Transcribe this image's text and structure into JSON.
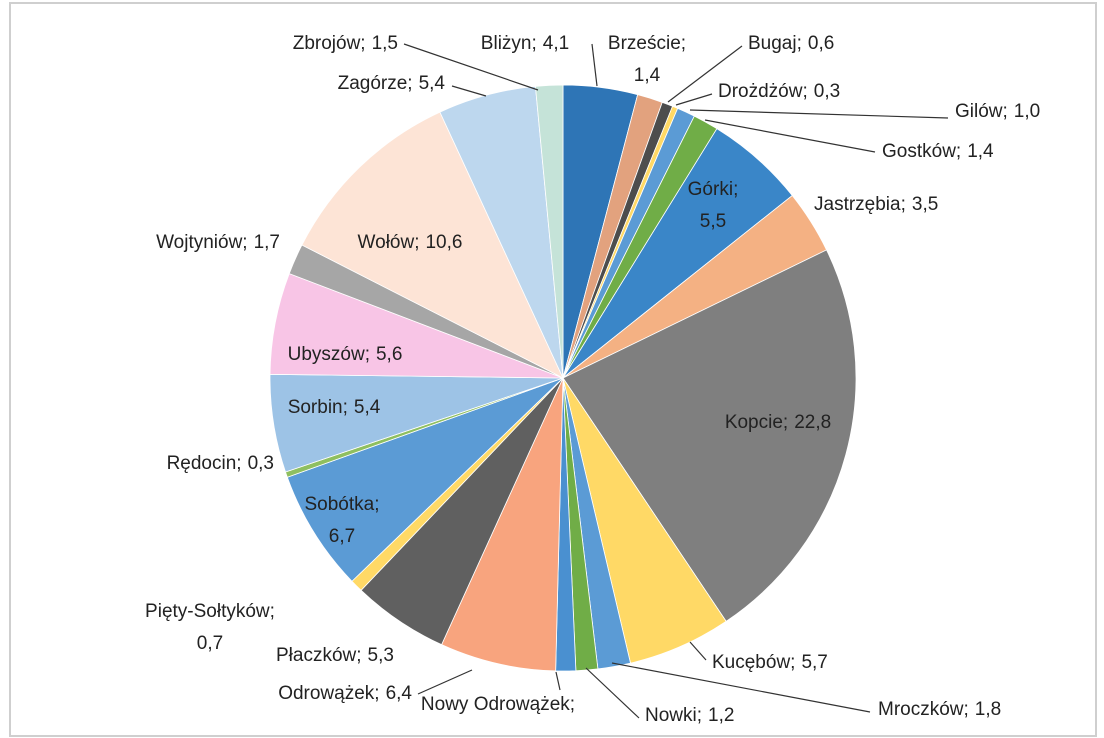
{
  "chart_data": {
    "type": "pie",
    "categories": [
      "Bliżyn",
      "Brzeście",
      "Bugaj",
      "Drożdżów",
      "Gilów",
      "Gostków",
      "Górki",
      "Jastrzębia",
      "Kopcie",
      "Kucębów",
      "Mroczków",
      "Nowki",
      "Nowy Odrowążek",
      "Odrowążek",
      "Płaczków",
      "Pięty-Sołtyków",
      "Sobótka",
      "Rędocin",
      "Sorbin",
      "Ubyszów",
      "Wojtyniów",
      "Wołów",
      "Zagórze",
      "Zbrojów"
    ],
    "values": [
      4.1,
      1.4,
      0.6,
      0.3,
      1.0,
      1.4,
      5.5,
      3.5,
      22.8,
      5.7,
      1.8,
      1.2,
      1.1,
      6.4,
      5.3,
      0.7,
      6.7,
      0.3,
      5.4,
      5.6,
      1.7,
      10.6,
      5.4,
      1.5
    ],
    "value_labels": [
      "4,1",
      "1,4",
      "0,6",
      "0,3",
      "1,0",
      "1,4",
      "5,5",
      "3,5",
      "22,8",
      "5,7",
      "1,8",
      "1,2",
      null,
      "6,4",
      "5,3",
      "0,7",
      "6,7",
      "0,3",
      "5,4",
      "5,6",
      "1,7",
      "10,6",
      "5,4",
      "1,5"
    ],
    "label_separator": ";",
    "colors": [
      "#2e75b6",
      "#e2a27e",
      "#4d4d4d",
      "#ffd966",
      "#5b9bd5",
      "#70ad47",
      "#3a86c8",
      "#f4b183",
      "#7f7f7f",
      "#ffd966",
      "#5b9bd5",
      "#70ad47",
      "#4a90d0",
      "#f8a47e",
      "#606060",
      "#ffd966",
      "#5b9bd5",
      "#8fbf60",
      "#9dc3e6",
      "#f8c5e6",
      "#a6a6a6",
      "#fde4d6",
      "#bdd7ee",
      "#c5e3d8"
    ]
  }
}
